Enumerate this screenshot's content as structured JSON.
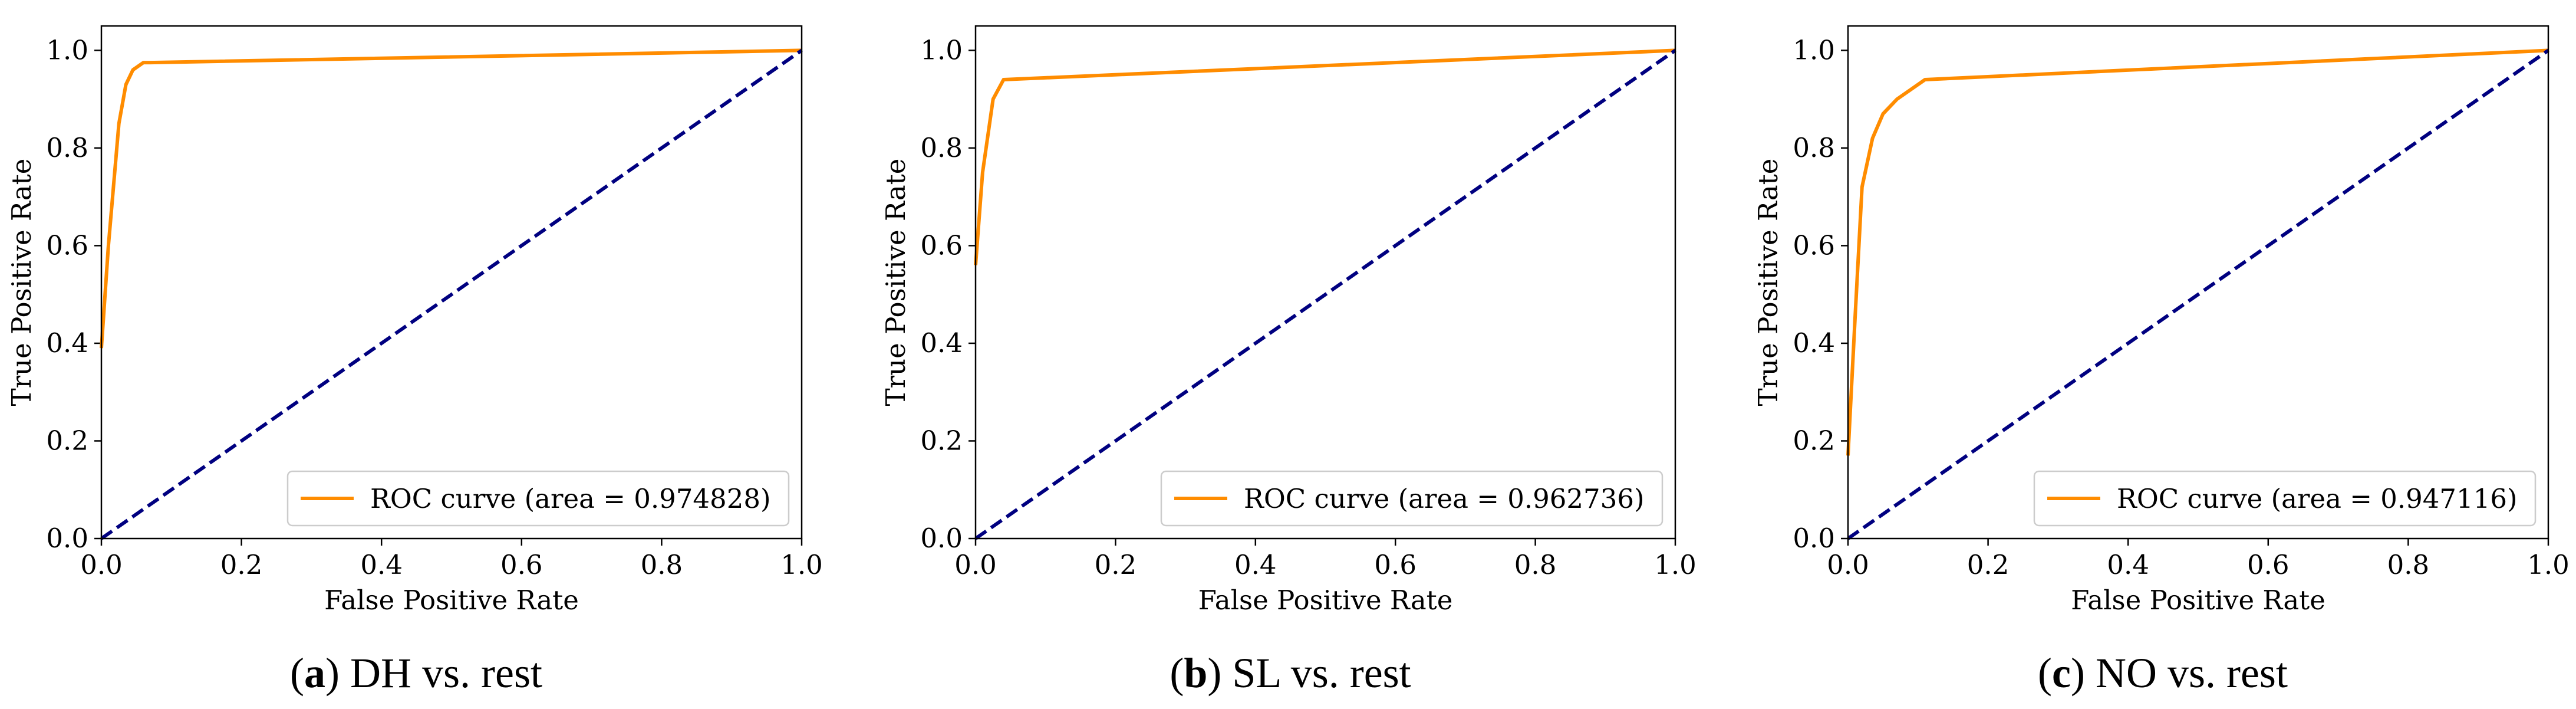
{
  "colors": {
    "roc_curve": "#ff8c00",
    "chance_line": "#000080",
    "axes": "#000000",
    "background": "#ffffff"
  },
  "chart_data": [
    {
      "type": "line",
      "caption": {
        "letter": "a",
        "text": " DH vs. rest",
        "open": "(",
        "close": ")"
      },
      "xlabel": "False Positive Rate",
      "ylabel": "True Positive Rate",
      "xlim": [
        0.0,
        1.0
      ],
      "ylim": [
        0.0,
        1.05
      ],
      "x_ticks": [
        "0.0",
        "0.2",
        "0.4",
        "0.6",
        "0.8",
        "1.0"
      ],
      "y_ticks": [
        "0.0",
        "0.2",
        "0.4",
        "0.6",
        "0.8",
        "1.0"
      ],
      "grid": false,
      "legend_position": "lower right",
      "series": [
        {
          "name": "ROC curve (area = 0.974828)",
          "style": "solid",
          "x": [
            0.0,
            0.01,
            0.025,
            0.035,
            0.045,
            0.06,
            0.07,
            1.0
          ],
          "y": [
            0.39,
            0.6,
            0.85,
            0.93,
            0.96,
            0.975,
            0.975,
            1.0
          ]
        },
        {
          "name": "",
          "style": "dashed",
          "x": [
            0.0,
            1.0
          ],
          "y": [
            0.0,
            1.0
          ]
        }
      ]
    },
    {
      "type": "line",
      "caption": {
        "letter": "b",
        "text": " SL vs. rest",
        "open": "(",
        "close": ")"
      },
      "xlabel": "False Positive Rate",
      "ylabel": "True Positive Rate",
      "xlim": [
        0.0,
        1.0
      ],
      "ylim": [
        0.0,
        1.05
      ],
      "x_ticks": [
        "0.0",
        "0.2",
        "0.4",
        "0.6",
        "0.8",
        "1.0"
      ],
      "y_ticks": [
        "0.0",
        "0.2",
        "0.4",
        "0.6",
        "0.8",
        "1.0"
      ],
      "grid": false,
      "legend_position": "lower right",
      "series": [
        {
          "name": "ROC curve (area = 0.962736)",
          "style": "solid",
          "x": [
            0.0,
            0.01,
            0.025,
            0.04,
            1.0
          ],
          "y": [
            0.56,
            0.75,
            0.9,
            0.94,
            1.0
          ]
        },
        {
          "name": "",
          "style": "dashed",
          "x": [
            0.0,
            1.0
          ],
          "y": [
            0.0,
            1.0
          ]
        }
      ]
    },
    {
      "type": "line",
      "caption": {
        "letter": "c",
        "text": "NO vs. rest",
        "open": "(",
        "close": ") "
      },
      "xlabel": "False Positive Rate",
      "ylabel": "True Positive Rate",
      "xlim": [
        0.0,
        1.0
      ],
      "ylim": [
        0.0,
        1.05
      ],
      "x_ticks": [
        "0.0",
        "0.2",
        "0.4",
        "0.6",
        "0.8",
        "1.0"
      ],
      "y_ticks": [
        "0.0",
        "0.2",
        "0.4",
        "0.6",
        "0.8",
        "1.0"
      ],
      "grid": false,
      "legend_position": "lower right",
      "series": [
        {
          "name": "ROC curve (area = 0.947116)",
          "style": "solid",
          "x": [
            0.0,
            0.01,
            0.02,
            0.035,
            0.05,
            0.07,
            0.09,
            0.11,
            1.0
          ],
          "y": [
            0.17,
            0.45,
            0.72,
            0.82,
            0.87,
            0.9,
            0.92,
            0.94,
            1.0
          ]
        },
        {
          "name": "",
          "style": "dashed",
          "x": [
            0.0,
            1.0
          ],
          "y": [
            0.0,
            1.0
          ]
        }
      ]
    }
  ]
}
